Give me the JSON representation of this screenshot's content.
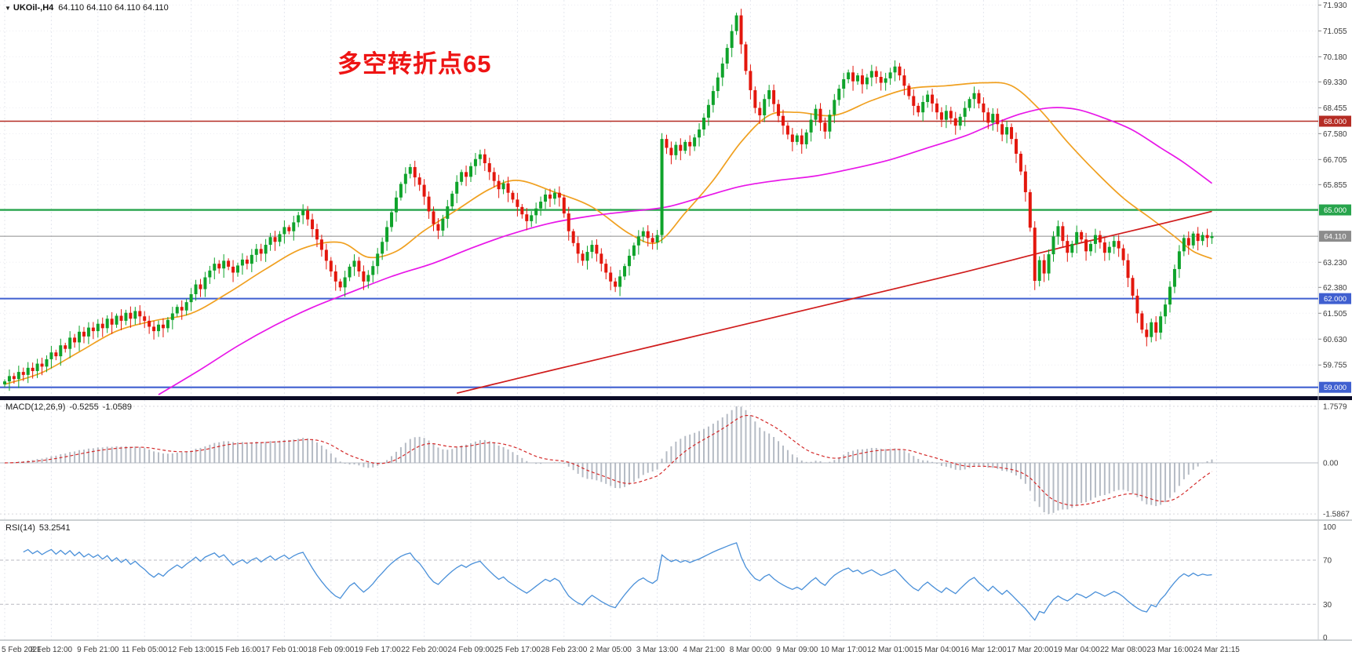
{
  "header": {
    "symbol": "UKOil-,H4",
    "ohlc": "64.110 64.110 64.110 64.110"
  },
  "annotation": {
    "text": "多空转折点65",
    "color": "#ee1414"
  },
  "colors": {
    "up": "#0fa32b",
    "down": "#e3170d",
    "ma_fast": "#f0a020",
    "ma_mid": "#e816e8",
    "ma_slow": "#d01c1c",
    "macd_hist": "#a9b0ba",
    "macd_signal": "#d42a2a",
    "rsi": "#4a90d9",
    "grid": "#e4e7ee",
    "level_red": "#b52c24",
    "level_green": "#27a44c",
    "level_blue": "#3f5fd0",
    "current": "#8c8c8c"
  },
  "price_axis": {
    "ticks": [
      {
        "v": 71.93,
        "t": "71.930"
      },
      {
        "v": 71.055,
        "t": "71.055"
      },
      {
        "v": 70.18,
        "t": "70.180"
      },
      {
        "v": 69.33,
        "t": "69.330"
      },
      {
        "v": 68.455,
        "t": "68.455"
      },
      {
        "v": 67.58,
        "t": "67.580"
      },
      {
        "v": 66.705,
        "t": "66.705"
      },
      {
        "v": 65.855,
        "t": "65.855"
      },
      {
        "v": 63.23,
        "t": "63.230"
      },
      {
        "v": 62.38,
        "t": "62.380"
      },
      {
        "v": 61.505,
        "t": "61.505"
      },
      {
        "v": 60.63,
        "t": "60.630"
      },
      {
        "v": 59.755,
        "t": "59.755"
      }
    ],
    "badges": [
      {
        "v": 68.0,
        "t": "68.000",
        "color_key": "level_red"
      },
      {
        "v": 65.0,
        "t": "65.000",
        "color_key": "level_green"
      },
      {
        "v": 64.11,
        "t": "64.110",
        "color_key": "current"
      },
      {
        "v": 62.0,
        "t": "62.000",
        "color_key": "level_blue"
      },
      {
        "v": 59.0,
        "t": "59.000",
        "color_key": "level_blue"
      }
    ]
  },
  "levels": [
    {
      "v": 68.0,
      "color_key": "level_red",
      "w": 1.6
    },
    {
      "v": 65.0,
      "color_key": "level_green",
      "w": 2.4
    },
    {
      "v": 64.11,
      "color_key": "current",
      "w": 1
    },
    {
      "v": 62.0,
      "color_key": "level_blue",
      "w": 2
    },
    {
      "v": 59.0,
      "color_key": "level_blue",
      "w": 2.2
    }
  ],
  "time_axis": {
    "labels": [
      "5 Feb 2021",
      "8 Feb 12:00",
      "9 Feb 21:00",
      "11 Feb 05:00",
      "12 Feb 13:00",
      "15 Feb 16:00",
      "17 Feb 01:00",
      "18 Feb 09:00",
      "19 Feb 17:00",
      "22 Feb 20:00",
      "24 Feb 09:00",
      "25 Feb 17:00",
      "28 Feb 23:00",
      "2 Mar 05:00",
      "3 Mar 13:00",
      "4 Mar 21:00",
      "8 Mar 00:00",
      "9 Mar 09:00",
      "10 Mar 17:00",
      "12 Mar 01:00",
      "15 Mar 04:00",
      "16 Mar 12:00",
      "17 Mar 20:00",
      "19 Mar 04:00",
      "22 Mar 08:00",
      "23 Mar 16:00",
      "24 Mar 21:15"
    ]
  },
  "indicators": {
    "macd": {
      "name": "MACD(12,26,9)",
      "value_main": "-0.5255",
      "value_signal": "-1.0589",
      "scale": [
        {
          "v": 1.7579,
          "t": "1.7579"
        },
        {
          "v": 0,
          "t": "0.00"
        },
        {
          "v": -1.5867,
          "t": "-1.5867"
        }
      ]
    },
    "rsi": {
      "name": "RSI(14)",
      "value": "53.2541",
      "levels": [
        70,
        30
      ],
      "scale": [
        {
          "v": 100,
          "t": "100"
        },
        {
          "v": 70,
          "t": "70"
        },
        {
          "v": 30,
          "t": "30"
        },
        {
          "v": 0,
          "t": "0"
        }
      ]
    }
  },
  "chart_data": {
    "type": "candlestick",
    "symbol": "UKOil-",
    "timeframe": "H4",
    "current_price": 64.11,
    "price_axis_range": [
      58.7,
      72.1
    ],
    "first_open": 59.1,
    "closes": [
      59.2,
      59.38,
      59.28,
      59.52,
      59.42,
      59.66,
      59.55,
      59.8,
      59.7,
      59.95,
      60.18,
      60.05,
      60.42,
      60.3,
      60.68,
      60.52,
      60.88,
      60.72,
      61.02,
      60.9,
      61.15,
      61.0,
      61.32,
      61.12,
      61.42,
      61.25,
      61.52,
      61.32,
      61.58,
      61.4,
      61.25,
      61.05,
      60.9,
      61.12,
      61.0,
      61.28,
      61.5,
      61.72,
      61.6,
      61.88,
      62.15,
      62.48,
      62.32,
      62.72,
      62.95,
      63.18,
      63.02,
      63.28,
      63.08,
      62.88,
      63.12,
      63.32,
      63.18,
      63.48,
      63.68,
      63.52,
      63.82,
      64.08,
      63.92,
      64.18,
      64.42,
      64.28,
      64.58,
      64.82,
      64.98,
      64.68,
      64.35,
      64.0,
      63.65,
      63.28,
      62.92,
      62.58,
      62.38,
      62.72,
      63.08,
      63.28,
      62.92,
      62.58,
      62.8,
      63.1,
      63.52,
      63.92,
      64.42,
      64.92,
      65.42,
      65.88,
      66.22,
      66.45,
      66.1,
      65.85,
      65.45,
      64.95,
      64.52,
      64.3,
      64.7,
      65.12,
      65.55,
      65.95,
      66.28,
      66.12,
      66.48,
      66.72,
      66.88,
      66.58,
      66.28,
      65.98,
      65.7,
      65.9,
      65.58,
      65.35,
      65.1,
      64.85,
      64.62,
      64.82,
      65.05,
      65.28,
      65.52,
      65.38,
      65.58,
      65.42,
      64.88,
      64.28,
      63.88,
      63.52,
      63.28,
      63.58,
      63.82,
      63.52,
      63.18,
      62.88,
      62.58,
      62.4,
      62.75,
      63.1,
      63.45,
      63.8,
      64.1,
      64.28,
      64.05,
      63.9,
      64.15,
      67.4,
      67.1,
      66.85,
      67.2,
      67.0,
      67.3,
      67.15,
      67.45,
      67.72,
      68.12,
      68.55,
      69.02,
      69.48,
      69.95,
      70.48,
      71.05,
      71.58,
      70.6,
      69.7,
      69.05,
      68.45,
      68.2,
      68.75,
      69.05,
      68.58,
      68.18,
      67.85,
      67.55,
      67.3,
      67.52,
      67.22,
      67.62,
      68.05,
      68.42,
      67.95,
      67.65,
      68.22,
      68.72,
      69.1,
      69.42,
      69.65,
      69.35,
      69.55,
      69.25,
      69.48,
      69.7,
      69.5,
      69.3,
      69.45,
      69.65,
      69.85,
      69.55,
      69.2,
      68.85,
      68.52,
      68.3,
      68.65,
      68.9,
      68.6,
      68.3,
      68.05,
      68.35,
      68.1,
      67.85,
      68.15,
      68.45,
      68.75,
      68.95,
      68.6,
      68.3,
      67.95,
      68.25,
      67.9,
      67.55,
      67.8,
      67.4,
      66.9,
      66.3,
      65.6,
      64.4,
      62.6,
      63.3,
      62.85,
      63.5,
      64.1,
      64.45,
      63.95,
      63.55,
      63.85,
      64.25,
      64.0,
      63.6,
      63.85,
      64.15,
      63.9,
      63.55,
      63.75,
      63.95,
      63.7,
      63.3,
      62.7,
      62.1,
      61.5,
      60.95,
      60.7,
      61.2,
      60.85,
      61.4,
      61.8,
      62.4,
      63.0,
      63.6,
      64.05,
      63.8,
      64.2,
      63.95,
      64.15,
      64.05,
      64.11
    ],
    "moving_averages": [
      {
        "name": "fast-ma",
        "color_key": "ma_fast",
        "points": [
          [
            0,
            59.1
          ],
          [
            8,
            59.5
          ],
          [
            16,
            60.2
          ],
          [
            24,
            60.9
          ],
          [
            32,
            61.25
          ],
          [
            40,
            61.5
          ],
          [
            48,
            62.2
          ],
          [
            56,
            63.0
          ],
          [
            64,
            63.7
          ],
          [
            72,
            63.9
          ],
          [
            78,
            63.4
          ],
          [
            84,
            63.6
          ],
          [
            90,
            64.3
          ],
          [
            97,
            65.0
          ],
          [
            104,
            65.7
          ],
          [
            110,
            66.0
          ],
          [
            118,
            65.6
          ],
          [
            126,
            65.1
          ],
          [
            134,
            64.2
          ],
          [
            140,
            63.9
          ],
          [
            146,
            64.9
          ],
          [
            152,
            66.0
          ],
          [
            158,
            67.3
          ],
          [
            164,
            68.2
          ],
          [
            170,
            68.3
          ],
          [
            178,
            68.2
          ],
          [
            186,
            68.7
          ],
          [
            194,
            69.1
          ],
          [
            202,
            69.2
          ],
          [
            210,
            69.3
          ],
          [
            216,
            69.2
          ],
          [
            222,
            68.4
          ],
          [
            228,
            67.3
          ],
          [
            234,
            66.3
          ],
          [
            240,
            65.4
          ],
          [
            246,
            64.7
          ],
          [
            251,
            64.1
          ],
          [
            255,
            63.6
          ],
          [
            259,
            63.35
          ]
        ]
      },
      {
        "name": "mid-ma",
        "color_key": "ma_mid",
        "points": [
          [
            33,
            58.75
          ],
          [
            42,
            59.6
          ],
          [
            50,
            60.4
          ],
          [
            58,
            61.1
          ],
          [
            66,
            61.7
          ],
          [
            74,
            62.2
          ],
          [
            83,
            62.75
          ],
          [
            92,
            63.2
          ],
          [
            100,
            63.7
          ],
          [
            108,
            64.15
          ],
          [
            117,
            64.55
          ],
          [
            126,
            64.8
          ],
          [
            134,
            64.95
          ],
          [
            142,
            65.1
          ],
          [
            150,
            65.45
          ],
          [
            158,
            65.8
          ],
          [
            166,
            66.0
          ],
          [
            174,
            66.15
          ],
          [
            182,
            66.4
          ],
          [
            190,
            66.7
          ],
          [
            198,
            67.1
          ],
          [
            206,
            67.5
          ],
          [
            212,
            67.9
          ],
          [
            218,
            68.25
          ],
          [
            224,
            68.45
          ],
          [
            230,
            68.4
          ],
          [
            236,
            68.1
          ],
          [
            242,
            67.7
          ],
          [
            248,
            67.1
          ],
          [
            253,
            66.6
          ],
          [
            259,
            65.9
          ]
        ]
      },
      {
        "name": "slow-ma",
        "color_key": "ma_slow",
        "points": [
          [
            97,
            58.8
          ],
          [
            110,
            59.3
          ],
          [
            122,
            59.75
          ],
          [
            134,
            60.2
          ],
          [
            146,
            60.65
          ],
          [
            158,
            61.1
          ],
          [
            170,
            61.55
          ],
          [
            182,
            62.0
          ],
          [
            194,
            62.45
          ],
          [
            206,
            62.9
          ],
          [
            216,
            63.3
          ],
          [
            226,
            63.7
          ],
          [
            234,
            64.0
          ],
          [
            242,
            64.3
          ],
          [
            250,
            64.6
          ],
          [
            259,
            64.95
          ]
        ]
      }
    ]
  }
}
